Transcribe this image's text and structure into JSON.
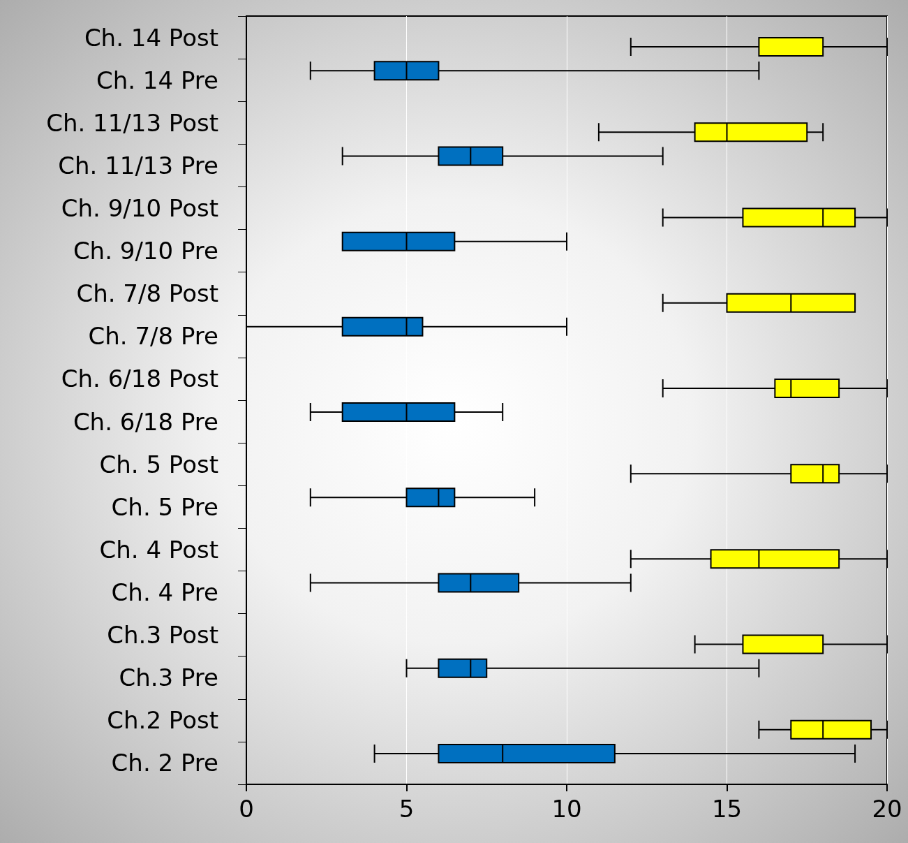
{
  "chart_data": {
    "type": "box",
    "orientation": "horizontal",
    "grid": "x",
    "categories": [
      "Ch. 14 Post",
      "Ch. 14 Pre",
      "Ch. 11/13 Post",
      "Ch. 11/13 Pre",
      "Ch. 9/10 Post",
      "Ch. 9/10 Pre",
      "Ch. 7/8 Post",
      "Ch. 7/8 Pre",
      "Ch. 6/18 Post",
      "Ch. 6/18 Pre",
      "Ch. 5 Post",
      "Ch. 5 Pre",
      "Ch. 4 Post",
      "Ch. 4 Pre",
      "Ch.3 Post",
      "Ch.3 Pre",
      "Ch.2 Post",
      "Ch. 2 Pre"
    ],
    "xlim": [
      0,
      20
    ],
    "xticks": [
      0,
      5,
      10,
      15,
      20
    ],
    "series": [
      {
        "color": "#0070c0",
        "boxes": [
          null,
          {
            "low": 2,
            "q1": 4,
            "median": 5,
            "q3": 6,
            "high": 16
          },
          null,
          {
            "low": 3,
            "q1": 6,
            "median": 7,
            "q3": 8,
            "high": 13
          },
          null,
          {
            "low": 3,
            "q1": 3,
            "median": 5,
            "q3": 6.5,
            "high": 10
          },
          null,
          {
            "low": 0,
            "q1": 3,
            "median": 5,
            "q3": 5.5,
            "high": 10
          },
          null,
          {
            "low": 2,
            "q1": 3,
            "median": 5,
            "q3": 6.5,
            "high": 8
          },
          null,
          {
            "low": 2,
            "q1": 5,
            "median": 6,
            "q3": 6.5,
            "high": 9
          },
          null,
          {
            "low": 2,
            "q1": 6,
            "median": 7,
            "q3": 8.5,
            "high": 12
          },
          null,
          {
            "low": 5,
            "q1": 6,
            "median": 7,
            "q3": 7.5,
            "high": 16
          },
          null,
          {
            "low": 4,
            "q1": 6,
            "median": 8,
            "q3": 11.5,
            "high": 19
          }
        ]
      },
      {
        "color": "#ffff00",
        "boxes": [
          {
            "low": 12,
            "q1": 16,
            "median": 18,
            "q3": 18,
            "high": 20
          },
          null,
          {
            "low": 11,
            "q1": 14,
            "median": 15,
            "q3": 17.5,
            "high": 18
          },
          null,
          {
            "low": 13,
            "q1": 15.5,
            "median": 18,
            "q3": 19,
            "high": 20
          },
          null,
          {
            "low": 13,
            "q1": 15,
            "median": 17,
            "q3": 19,
            "high": 19
          },
          null,
          {
            "low": 13,
            "q1": 16.5,
            "median": 17,
            "q3": 18.5,
            "high": 20
          },
          null,
          {
            "low": 12,
            "q1": 17,
            "median": 18,
            "q3": 18.5,
            "high": 20
          },
          null,
          {
            "low": 12,
            "q1": 14.5,
            "median": 16,
            "q3": 18.5,
            "high": 20
          },
          null,
          {
            "low": 14,
            "q1": 15.5,
            "median": 18,
            "q3": 18,
            "high": 20
          },
          null,
          {
            "low": 16,
            "q1": 17,
            "median": 18,
            "q3": 19.5,
            "high": 20
          },
          null
        ]
      }
    ]
  }
}
